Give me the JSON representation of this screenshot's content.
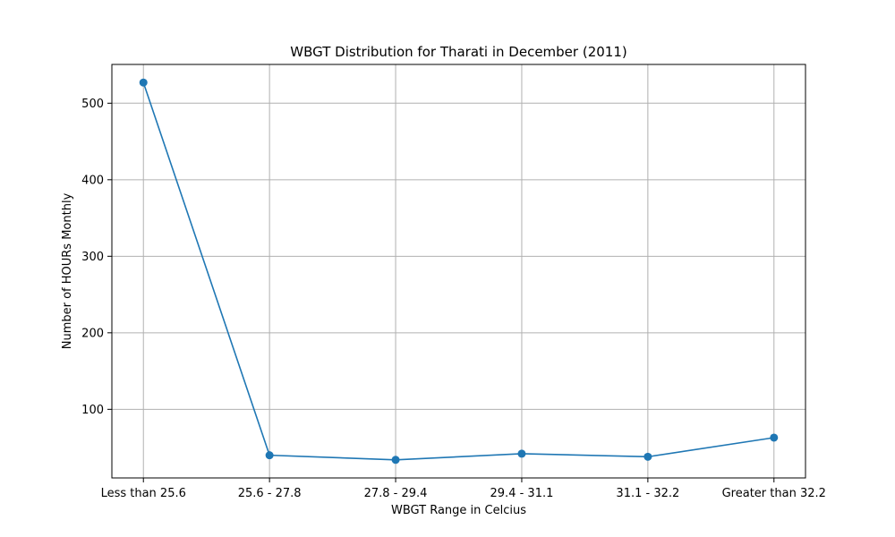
{
  "chart_data": {
    "type": "line",
    "title": "WBGT Distribution for Tharati in December (2011)",
    "xlabel": "WBGT Range in Celcius",
    "ylabel": "Number of HOURs Monthly",
    "categories": [
      "Less than 25.6",
      "25.6 - 27.8",
      "27.8 - 29.4",
      "29.4 - 31.1",
      "31.1 - 32.2",
      "Greater than 32.2"
    ],
    "series": [
      {
        "values": [
          527,
          40,
          34,
          42,
          38,
          63
        ]
      }
    ],
    "ylim": [
      10.35,
      550.65
    ],
    "yticks": [
      100,
      200,
      300,
      400,
      500
    ],
    "grid": true,
    "colors": {
      "line": "#1f77b4",
      "marker": "#1f77b4"
    }
  }
}
